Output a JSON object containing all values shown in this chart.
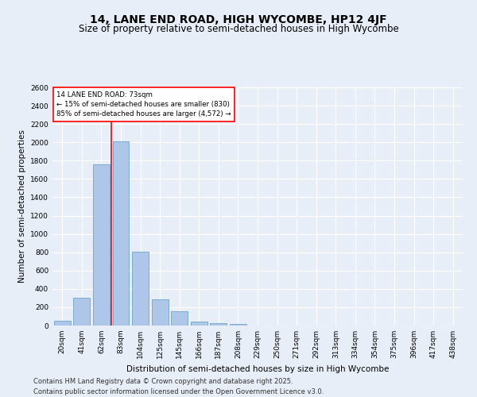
{
  "title": "14, LANE END ROAD, HIGH WYCOMBE, HP12 4JF",
  "subtitle": "Size of property relative to semi-detached houses in High Wycombe",
  "xlabel": "Distribution of semi-detached houses by size in High Wycombe",
  "ylabel": "Number of semi-detached properties",
  "footer1": "Contains HM Land Registry data © Crown copyright and database right 2025.",
  "footer2": "Contains public sector information licensed under the Open Government Licence v3.0.",
  "categories": [
    "20sqm",
    "41sqm",
    "62sqm",
    "83sqm",
    "104sqm",
    "125sqm",
    "145sqm",
    "166sqm",
    "187sqm",
    "208sqm",
    "229sqm",
    "250sqm",
    "271sqm",
    "292sqm",
    "313sqm",
    "334sqm",
    "354sqm",
    "375sqm",
    "396sqm",
    "417sqm",
    "438sqm"
  ],
  "values": [
    50,
    300,
    1760,
    2010,
    810,
    290,
    160,
    45,
    30,
    20,
    0,
    0,
    0,
    0,
    0,
    0,
    0,
    0,
    0,
    0,
    0
  ],
  "bar_color": "#aec6e8",
  "bar_edge_color": "#5a9ac5",
  "annotation_title": "14 LANE END ROAD: 73sqm",
  "annotation_line1": "← 15% of semi-detached houses are smaller (830)",
  "annotation_line2": "85% of semi-detached houses are larger (4,572) →",
  "red_line_x": 2.52,
  "ylim": [
    0,
    2600
  ],
  "yticks": [
    0,
    200,
    400,
    600,
    800,
    1000,
    1200,
    1400,
    1600,
    1800,
    2000,
    2200,
    2400,
    2600
  ],
  "background_color": "#e8eef7",
  "grid_color": "#ffffff",
  "title_fontsize": 10,
  "subtitle_fontsize": 8.5,
  "axis_label_fontsize": 7.5,
  "tick_fontsize": 6.5,
  "footer_fontsize": 6.0
}
